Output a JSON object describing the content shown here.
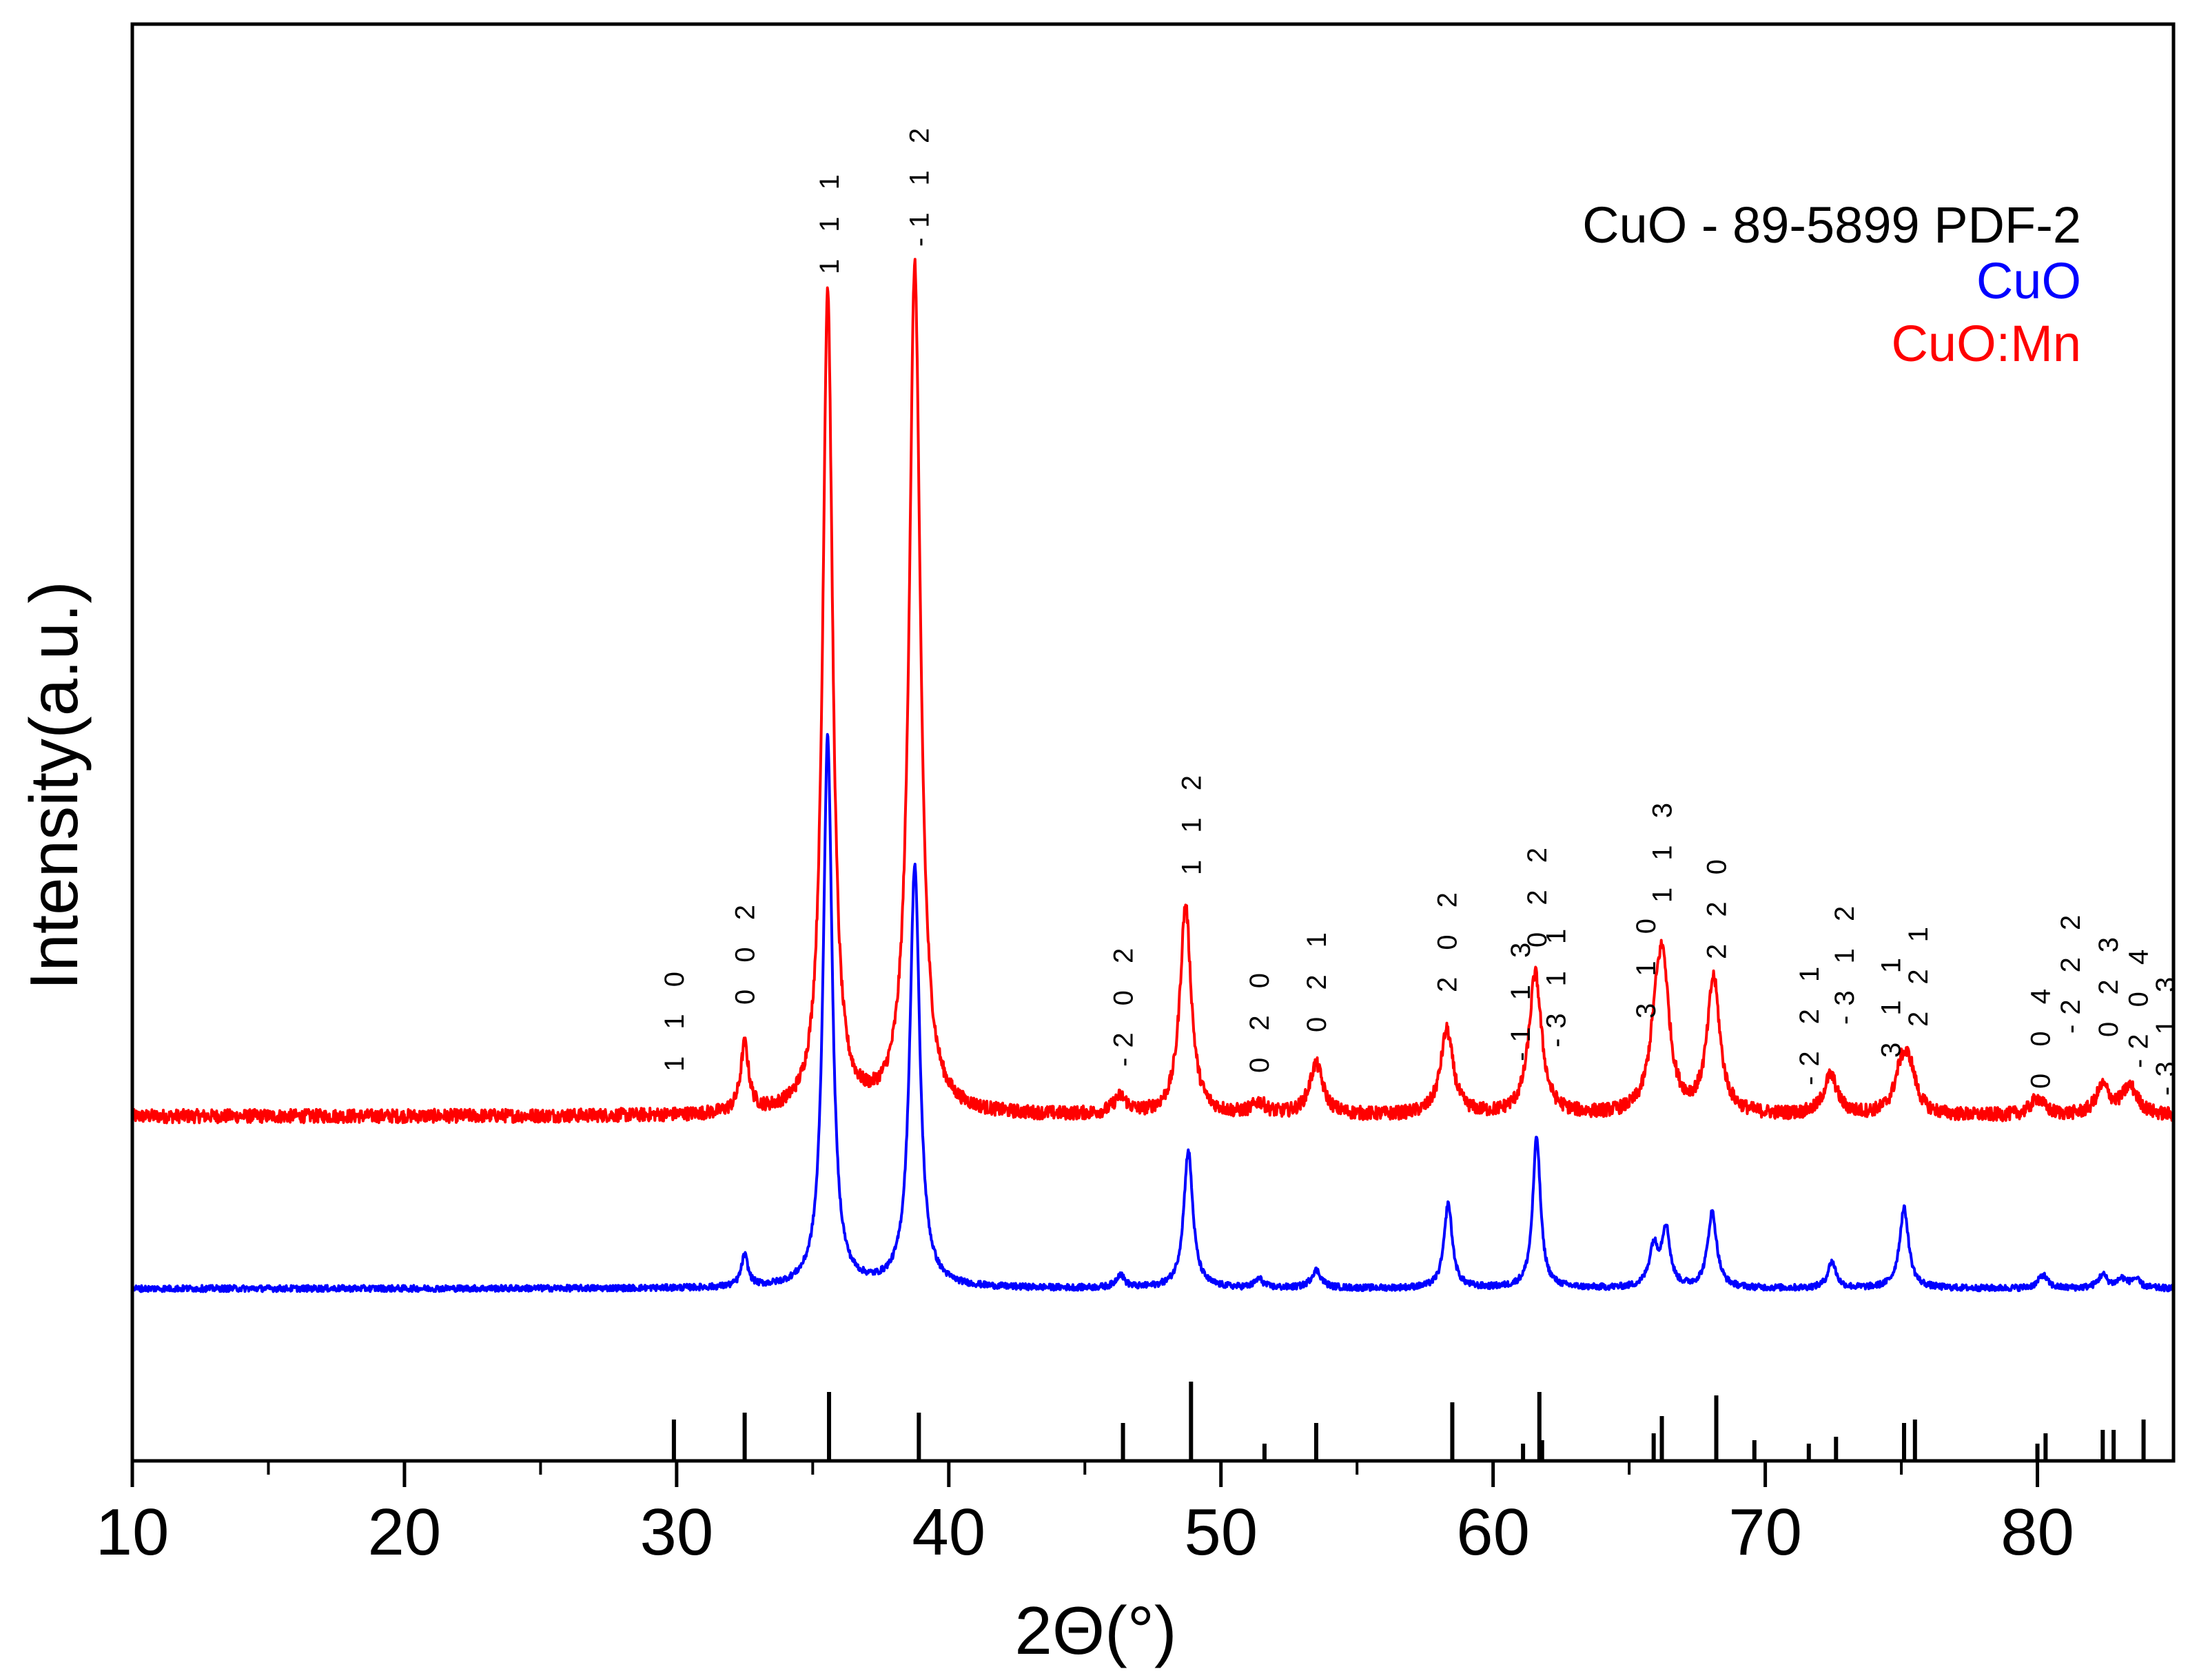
{
  "chart_data": {
    "type": "line",
    "title": "",
    "xlabel": "2Θ(°)",
    "ylabel": "Intensity(a.u.)",
    "xlim": [
      10,
      85
    ],
    "xticks": [
      {
        "value": 10,
        "label": "10"
      },
      {
        "value": 20,
        "label": "20"
      },
      {
        "value": 30,
        "label": "30"
      },
      {
        "value": 40,
        "label": "40"
      },
      {
        "value": 50,
        "label": "50"
      },
      {
        "value": 60,
        "label": "60"
      },
      {
        "value": 70,
        "label": "70"
      },
      {
        "value": 80,
        "label": "80"
      }
    ],
    "yticks": [],
    "grid": false,
    "legend_position": "top-right",
    "legend": [
      {
        "label": "CuO - 89-5899 PDF-2",
        "color": "#000000"
      },
      {
        "label": "CuO",
        "color": "#0000ff"
      },
      {
        "label": "CuO:Mn",
        "color": "#ff0000"
      }
    ],
    "series": [
      {
        "name": "CuO:Mn",
        "color": "#ff0000",
        "baseline": 0,
        "noise": 1.2,
        "peaks": [
          {
            "x": 32.5,
            "height": 12,
            "width": 0.18
          },
          {
            "x": 35.55,
            "height": 146,
            "width": 0.22
          },
          {
            "x": 38.75,
            "height": 150,
            "width": 0.25
          },
          {
            "x": 46.3,
            "height": 3,
            "width": 0.3
          },
          {
            "x": 48.7,
            "height": 37,
            "width": 0.25
          },
          {
            "x": 51.4,
            "height": 2,
            "width": 0.3
          },
          {
            "x": 53.5,
            "height": 9,
            "width": 0.3
          },
          {
            "x": 58.3,
            "height": 15,
            "width": 0.28
          },
          {
            "x": 61.55,
            "height": 25,
            "width": 0.28
          },
          {
            "x": 66.0,
            "height": 12,
            "width": 0.3
          },
          {
            "x": 66.25,
            "height": 22,
            "width": 0.28
          },
          {
            "x": 68.1,
            "height": 24,
            "width": 0.28
          },
          {
            "x": 72.4,
            "height": 7,
            "width": 0.3
          },
          {
            "x": 75.0,
            "height": 7,
            "width": 0.3
          },
          {
            "x": 75.3,
            "height": 7,
            "width": 0.3
          },
          {
            "x": 80.0,
            "height": 3,
            "width": 0.3
          },
          {
            "x": 82.4,
            "height": 5,
            "width": 0.3
          },
          {
            "x": 83.4,
            "height": 5,
            "width": 0.35
          }
        ]
      },
      {
        "name": "CuO",
        "color": "#0000ff",
        "baseline": 0,
        "noise": 0.7,
        "peaks": [
          {
            "x": 32.5,
            "height": 7,
            "width": 0.15
          },
          {
            "x": 35.55,
            "height": 124,
            "width": 0.2
          },
          {
            "x": 38.75,
            "height": 95,
            "width": 0.22
          },
          {
            "x": 46.3,
            "height": 3,
            "width": 0.18
          },
          {
            "x": 48.8,
            "height": 31,
            "width": 0.2
          },
          {
            "x": 51.4,
            "height": 2,
            "width": 0.18
          },
          {
            "x": 53.5,
            "height": 4,
            "width": 0.22
          },
          {
            "x": 58.35,
            "height": 19,
            "width": 0.18
          },
          {
            "x": 61.6,
            "height": 34,
            "width": 0.17
          },
          {
            "x": 65.9,
            "height": 9,
            "width": 0.2
          },
          {
            "x": 66.35,
            "height": 13,
            "width": 0.18
          },
          {
            "x": 68.05,
            "height": 17,
            "width": 0.2
          },
          {
            "x": 72.45,
            "height": 6,
            "width": 0.18
          },
          {
            "x": 75.1,
            "height": 18,
            "width": 0.2
          },
          {
            "x": 80.2,
            "height": 3,
            "width": 0.2
          },
          {
            "x": 82.4,
            "height": 3,
            "width": 0.2
          },
          {
            "x": 83.1,
            "height": 2,
            "width": 0.2
          },
          {
            "x": 83.6,
            "height": 2,
            "width": 0.2
          }
        ]
      }
    ],
    "reference_sticks": {
      "name": "CuO - 89-5899 PDF-2",
      "color": "#000000",
      "positions": [
        29.9,
        32.5,
        35.6,
        38.9,
        46.4,
        48.9,
        51.6,
        53.5,
        58.5,
        61.1,
        61.7,
        61.8,
        65.9,
        66.2,
        68.2,
        69.6,
        71.6,
        72.6,
        75.1,
        75.5,
        80.0,
        80.3,
        82.4,
        82.8,
        83.9
      ],
      "intensities": [
        12,
        14,
        20,
        14,
        11,
        23,
        5,
        11,
        17,
        5,
        20,
        6,
        8,
        13,
        19,
        6,
        5,
        7,
        11,
        12,
        5,
        8,
        9,
        9,
        12
      ]
    },
    "annotations": [
      {
        "label": "1 1 0",
        "x": 29.9
      },
      {
        "label": "0 0 2",
        "x": 32.5
      },
      {
        "label": "1 1 1",
        "x": 35.6
      },
      {
        "label": "-1 1 2",
        "x": 38.9
      },
      {
        "label": "-2 0 2",
        "x": 46.4
      },
      {
        "label": "1 1 2",
        "x": 48.9
      },
      {
        "label": "0 2 0",
        "x": 51.4
      },
      {
        "label": "0 2 1",
        "x": 53.5
      },
      {
        "label": "2 0 2",
        "x": 58.3
      },
      {
        "label": "-1 1 3",
        "x": 61.0
      },
      {
        "label": "0 2 2",
        "x": 61.6
      },
      {
        "label": "-3 1 1",
        "x": 62.3
      },
      {
        "label": "3 1 0",
        "x": 65.6
      },
      {
        "label": "1 1 3",
        "x": 66.2
      },
      {
        "label": "2 2 0",
        "x": 68.2
      },
      {
        "label": "-2 2 1",
        "x": 71.6
      },
      {
        "label": "-3 1 2",
        "x": 72.9
      },
      {
        "label": "3 1 1",
        "x": 74.6
      },
      {
        "label": "2 2 1",
        "x": 75.6
      },
      {
        "label": "0 0 4",
        "x": 80.1
      },
      {
        "label": "-2 2 2",
        "x": 81.2
      },
      {
        "label": "0 2 3",
        "x": 82.6
      },
      {
        "label": "-2 0 4",
        "x": 83.7
      },
      {
        "label": "-3 1 3",
        "x": 84.7
      }
    ]
  }
}
